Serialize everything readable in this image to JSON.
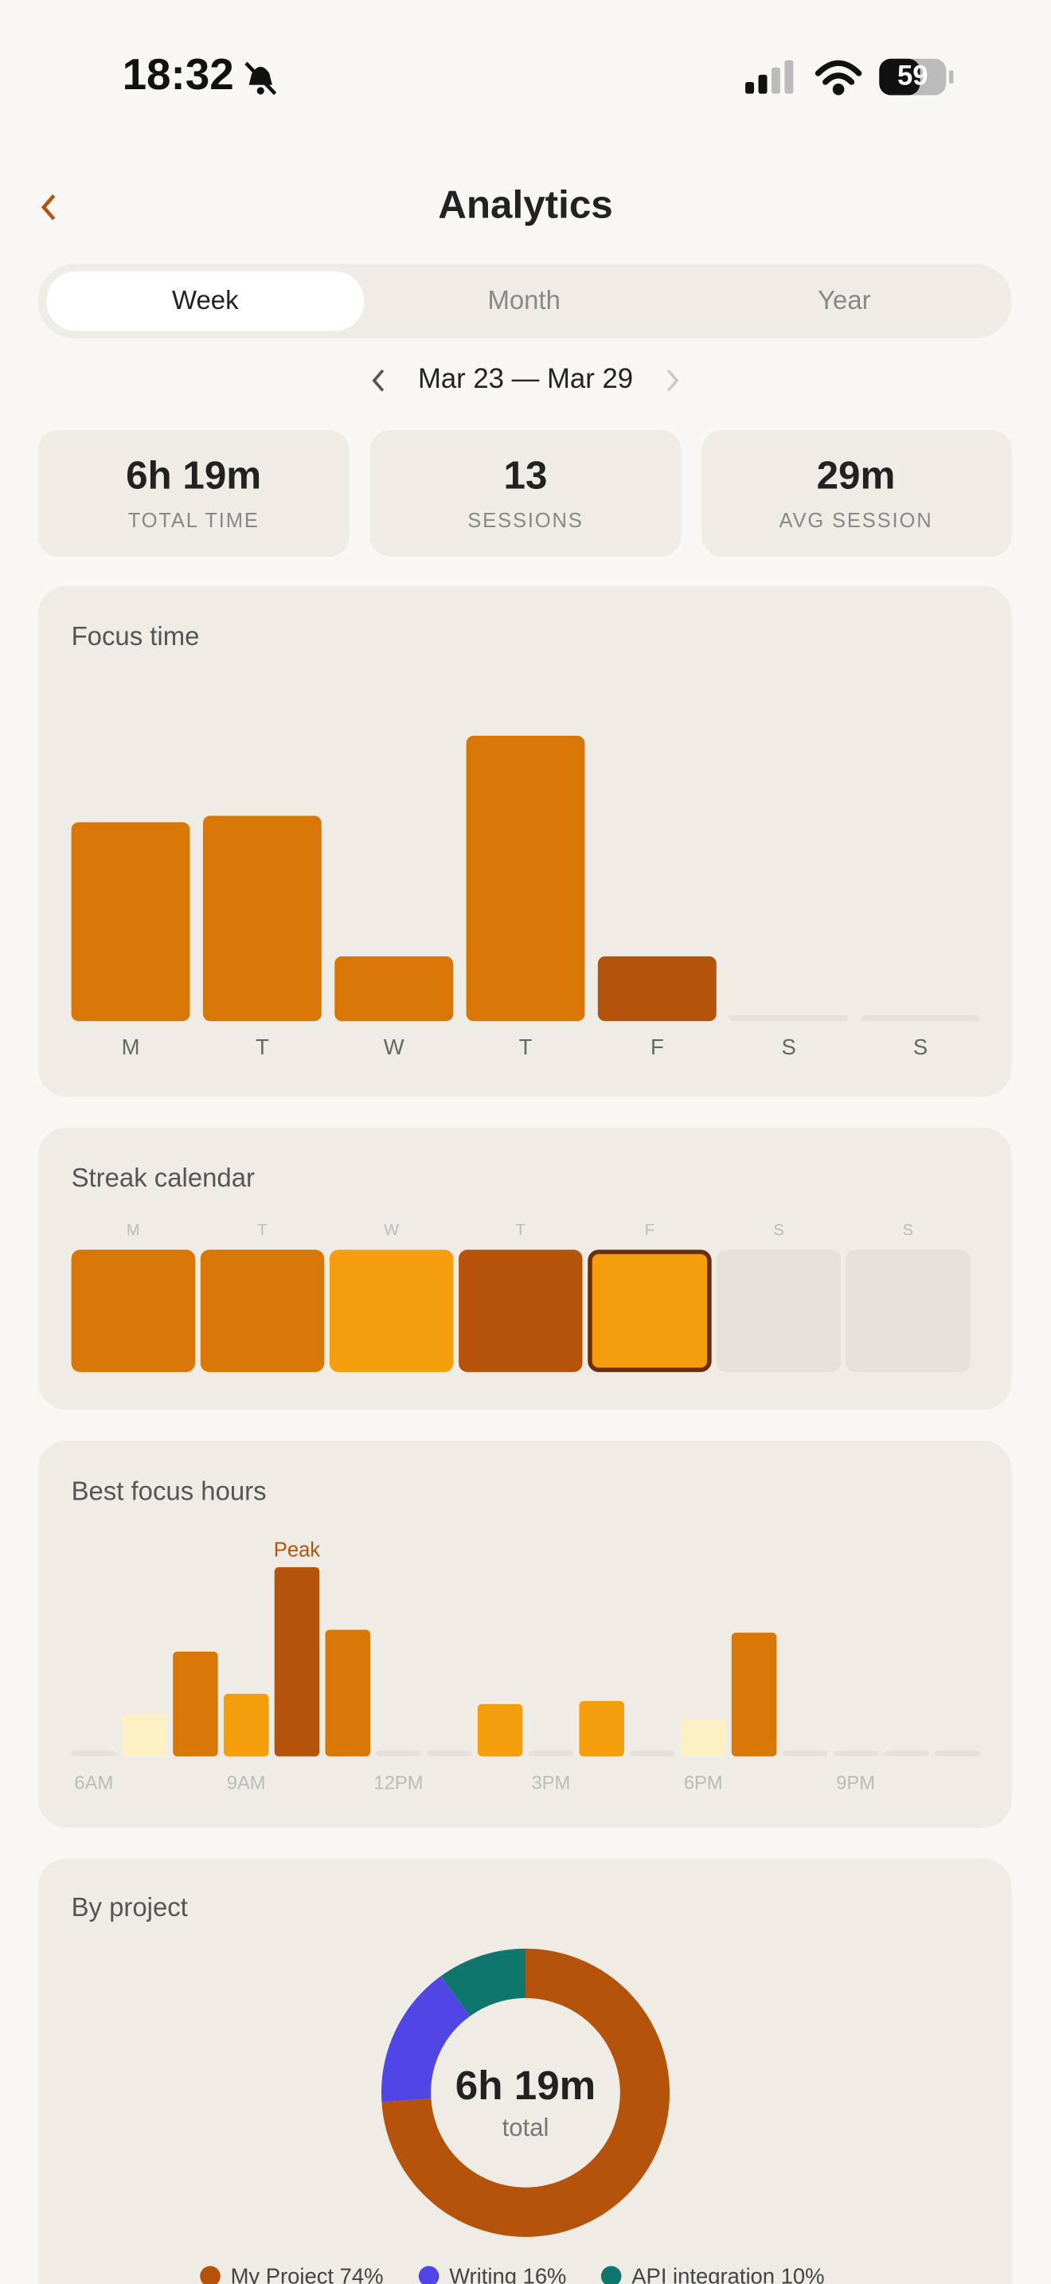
{
  "status_bar": {
    "time": "18:32",
    "battery": "59"
  },
  "header": {
    "title": "Analytics"
  },
  "tabs": [
    "Week",
    "Month",
    "Year"
  ],
  "date_range": "Mar 23 — Mar 29",
  "stats": [
    {
      "value": "6h 19m",
      "label": "TOTAL TIME"
    },
    {
      "value": "13",
      "label": "SESSIONS"
    },
    {
      "value": "29m",
      "label": "AVG SESSION"
    }
  ],
  "streak_calendar": {
    "title": "Streak calendar",
    "days": [
      {
        "label": "M",
        "color": "#d97706"
      },
      {
        "label": "T",
        "color": "#d97706"
      },
      {
        "label": "W",
        "color": "#f59e0b"
      },
      {
        "label": "T",
        "color": "#b45309"
      },
      {
        "label": "F",
        "color": "#f59e0b"
      },
      {
        "label": "S",
        "color": "#e4e0da"
      },
      {
        "label": "S",
        "color": "#e4e0da"
      }
    ]
  },
  "chart_data": [
    {
      "type": "bar",
      "title": "Focus time",
      "categories": [
        "M",
        "T",
        "W",
        "T",
        "F",
        "S",
        "S"
      ],
      "values": [
        92,
        95,
        30,
        132,
        30,
        0,
        0
      ],
      "colors": [
        "#d97706",
        "#d97706",
        "#d97706",
        "#d97706",
        "#b45309",
        "#d97706",
        "#d97706"
      ]
    },
    {
      "type": "bar",
      "title": "Best focus hours",
      "categories": [
        "6AM",
        null,
        null,
        "9AM",
        null,
        null,
        "12PM",
        null,
        null,
        "3PM",
        null,
        null,
        "6PM",
        null,
        null,
        "9PM",
        null,
        null
      ],
      "values": [
        0,
        29,
        72,
        43,
        130,
        87,
        0,
        0,
        36,
        0,
        38,
        0,
        25,
        85,
        0,
        0,
        0,
        0
      ],
      "colors": [
        "#fdf0c4",
        "#fdf0c4",
        "#d97706",
        "#f59e0b",
        "#b45309",
        "#d97706",
        "#fdf0c4",
        "#fdf0c4",
        "#f59e0b",
        "#fdf0c4",
        "#f59e0b",
        "#fdf0c4",
        "#fdf0c4",
        "#d97706",
        "#fdf0c4",
        "#fdf0c4",
        "#fdf0c4",
        "#fdf0c4"
      ],
      "annotations": [
        {
          "text": "Peak",
          "category_index": 4
        }
      ]
    },
    {
      "type": "pie",
      "title": "By project",
      "donut": true,
      "categories": [
        "My Project 74%",
        "Writing 16%",
        "API integration 10%"
      ],
      "values": [
        74,
        16,
        10
      ],
      "colors": [
        "#b45309",
        "#4f46e5",
        "#0f766e"
      ],
      "center_text": "6h 19m",
      "center_subtext": "total"
    }
  ]
}
